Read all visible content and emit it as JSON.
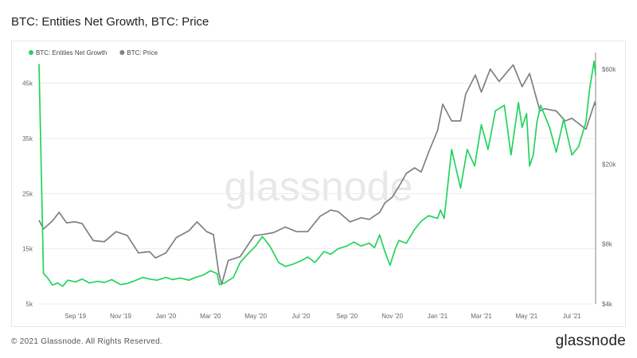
{
  "header": {
    "title": "BTC: Entities Net Growth, BTC: Price"
  },
  "footer": {
    "copyright": "© 2021 Glassnode. All Rights Reserved.",
    "brand": "glassnode"
  },
  "watermark": "glassnode",
  "colors": {
    "growth": "#22d35e",
    "price": "#808080",
    "grid": "#ececec",
    "axis_text": "#666666"
  },
  "chart_data": {
    "type": "line",
    "title": "BTC: Entities Net Growth, BTC: Price",
    "legend_position": "top-left",
    "grid": true,
    "x_ticks": [
      "Sep '19",
      "Nov '19",
      "Jan '20",
      "Mar '20",
      "May '20",
      "Jul '20",
      "Sep '20",
      "Nov '20",
      "Jan '21",
      "Mar '21",
      "May '21",
      "Jul '21"
    ],
    "y_left": {
      "ticks": [
        "5k",
        "15k",
        "25k",
        "35k",
        "45k"
      ],
      "range": [
        5000,
        50000
      ]
    },
    "y_right": {
      "ticks": [
        "$4k",
        "$8k",
        "$20k",
        "$60k"
      ],
      "scale": "log",
      "range": [
        4000,
        70000
      ]
    },
    "series": [
      {
        "name": "BTC: Entities Net Growth",
        "axis": "left",
        "x": [
          "2019-07-14",
          "2019-07-20",
          "2019-07-25",
          "2019-08-01",
          "2019-08-08",
          "2019-08-15",
          "2019-08-22",
          "2019-09-01",
          "2019-09-10",
          "2019-09-20",
          "2019-10-01",
          "2019-10-10",
          "2019-10-20",
          "2019-11-01",
          "2019-11-10",
          "2019-11-20",
          "2019-12-01",
          "2019-12-10",
          "2019-12-20",
          "2020-01-01",
          "2020-01-10",
          "2020-01-20",
          "2020-02-01",
          "2020-02-10",
          "2020-02-20",
          "2020-03-01",
          "2020-03-10",
          "2020-03-13",
          "2020-03-20",
          "2020-04-01",
          "2020-04-10",
          "2020-04-20",
          "2020-05-01",
          "2020-05-10",
          "2020-05-20",
          "2020-06-01",
          "2020-06-10",
          "2020-06-20",
          "2020-07-01",
          "2020-07-10",
          "2020-07-20",
          "2020-08-01",
          "2020-08-10",
          "2020-08-20",
          "2020-09-01",
          "2020-09-10",
          "2020-09-20",
          "2020-10-01",
          "2020-10-08",
          "2020-10-15",
          "2020-10-22",
          "2020-10-29",
          "2020-11-05",
          "2020-11-10",
          "2020-11-20",
          "2020-12-01",
          "2020-12-10",
          "2020-12-20",
          "2021-01-01",
          "2021-01-05",
          "2021-01-10",
          "2021-01-20",
          "2021-02-01",
          "2021-02-10",
          "2021-02-20",
          "2021-03-01",
          "2021-03-10",
          "2021-03-20",
          "2021-04-01",
          "2021-04-10",
          "2021-04-20",
          "2021-04-25",
          "2021-05-01",
          "2021-05-05",
          "2021-05-10",
          "2021-05-15",
          "2021-05-20",
          "2021-06-01",
          "2021-06-10",
          "2021-06-20",
          "2021-07-01",
          "2021-07-10",
          "2021-07-20",
          "2021-07-25",
          "2021-07-31",
          "2021-08-02"
        ],
        "y": [
          48500,
          10500,
          9800,
          8400,
          8800,
          8200,
          9300,
          9000,
          9500,
          8800,
          9100,
          8900,
          9400,
          8500,
          8700,
          9200,
          9800,
          9500,
          9300,
          9800,
          9400,
          9700,
          9300,
          9800,
          10200,
          11000,
          10500,
          8500,
          8800,
          9800,
          12500,
          14000,
          15500,
          17200,
          15500,
          12500,
          11800,
          12200,
          12800,
          13500,
          12500,
          14500,
          14000,
          15000,
          15500,
          16200,
          15500,
          16000,
          15200,
          17500,
          14500,
          12000,
          15000,
          16500,
          16000,
          18500,
          20000,
          21000,
          20500,
          22000,
          20500,
          33000,
          26000,
          33000,
          30000,
          37500,
          33000,
          40000,
          41000,
          32000,
          41500,
          37000,
          39500,
          30000,
          32000,
          38000,
          41000,
          37000,
          32500,
          38500,
          32000,
          33500,
          38000,
          44000,
          49000,
          46500
        ]
      },
      {
        "name": "BTC: Price",
        "axis": "right",
        "x": [
          "2019-07-14",
          "2019-07-20",
          "2019-08-01",
          "2019-08-10",
          "2019-08-20",
          "2019-09-01",
          "2019-09-10",
          "2019-09-25",
          "2019-10-10",
          "2019-10-26",
          "2019-11-10",
          "2019-11-25",
          "2019-12-10",
          "2019-12-18",
          "2020-01-01",
          "2020-01-15",
          "2020-02-01",
          "2020-02-12",
          "2020-02-25",
          "2020-03-05",
          "2020-03-12",
          "2020-03-16",
          "2020-03-25",
          "2020-04-10",
          "2020-04-29",
          "2020-05-10",
          "2020-05-25",
          "2020-06-10",
          "2020-06-25",
          "2020-07-10",
          "2020-07-27",
          "2020-08-10",
          "2020-08-20",
          "2020-09-05",
          "2020-09-20",
          "2020-10-01",
          "2020-10-15",
          "2020-10-22",
          "2020-11-01",
          "2020-11-10",
          "2020-11-20",
          "2020-12-01",
          "2020-12-10",
          "2020-12-20",
          "2021-01-01",
          "2021-01-08",
          "2021-01-20",
          "2021-02-01",
          "2021-02-08",
          "2021-02-21",
          "2021-03-01",
          "2021-03-13",
          "2021-03-25",
          "2021-04-13",
          "2021-04-25",
          "2021-05-05",
          "2021-05-19",
          "2021-05-25",
          "2021-06-10",
          "2021-06-22",
          "2021-07-01",
          "2021-07-20",
          "2021-08-01",
          "2021-08-02"
        ],
        "y": [
          10500,
          9500,
          10400,
          11500,
          10200,
          10300,
          10100,
          8300,
          8200,
          9200,
          8800,
          7200,
          7300,
          6800,
          7200,
          8600,
          9300,
          10300,
          9200,
          8900,
          5800,
          5000,
          6600,
          6900,
          8800,
          8900,
          9100,
          9700,
          9200,
          9200,
          11000,
          11800,
          11600,
          10300,
          10800,
          10600,
          11500,
          12800,
          13700,
          15500,
          18000,
          19200,
          18300,
          23000,
          29500,
          40000,
          33000,
          33000,
          45000,
          56000,
          46000,
          60000,
          52000,
          63000,
          49000,
          57000,
          37000,
          38000,
          37000,
          33000,
          34000,
          30000,
          41000,
          39500
        ]
      }
    ]
  }
}
